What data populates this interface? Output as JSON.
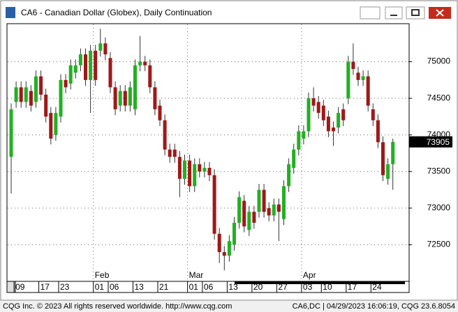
{
  "chart_data": {
    "type": "candlestick",
    "title": "CA6 - Canadian Dollar (Globex), Daily Continuation",
    "categories": [
      null,
      "09",
      null,
      null,
      null,
      null,
      "17",
      null,
      null,
      null,
      "23",
      null,
      null,
      null,
      null,
      null,
      null,
      "01",
      null,
      null,
      "06",
      null,
      null,
      null,
      null,
      "13",
      null,
      null,
      null,
      null,
      "21",
      null,
      null,
      null,
      null,
      null,
      "01",
      null,
      null,
      "06",
      null,
      null,
      null,
      null,
      "13",
      null,
      null,
      null,
      null,
      "20",
      null,
      null,
      null,
      null,
      "27",
      null,
      null,
      null,
      null,
      "03",
      null,
      null,
      null,
      "10",
      null,
      null,
      null,
      null,
      "17",
      null,
      null,
      null,
      null,
      "24",
      null,
      null,
      null,
      null
    ],
    "months": [
      null,
      null,
      null,
      null,
      null,
      null,
      null,
      null,
      null,
      null,
      null,
      null,
      null,
      null,
      null,
      null,
      null,
      "Feb",
      null,
      null,
      null,
      null,
      null,
      null,
      null,
      null,
      null,
      null,
      null,
      null,
      null,
      null,
      null,
      null,
      null,
      null,
      "Mar",
      null,
      null,
      null,
      null,
      null,
      null,
      null,
      null,
      null,
      null,
      null,
      null,
      null,
      null,
      null,
      null,
      null,
      null,
      null,
      null,
      null,
      null,
      "Apr",
      null,
      null,
      null,
      null,
      null,
      null,
      null,
      null,
      null,
      null,
      null,
      null,
      null,
      null,
      null,
      null,
      null,
      null
    ],
    "open": [
      73700,
      74450,
      74650,
      74450,
      74600,
      74450,
      74800,
      74550,
      74300,
      74000,
      74250,
      74750,
      74700,
      74850,
      74950,
      75100,
      74750,
      75150,
      75150,
      75250,
      75050,
      74650,
      74400,
      74600,
      74400,
      74350,
      74950,
      75000,
      74950,
      74650,
      74400,
      74200,
      73800,
      73800,
      73700,
      73400,
      73650,
      73300,
      73600,
      73500,
      73550,
      73450,
      72650,
      72400,
      72350,
      72500,
      72800,
      73100,
      72700,
      72950,
      72950,
      73250,
      73000,
      72900,
      73050,
      72850,
      73300,
      73550,
      73800,
      73950,
      74050,
      74500,
      74450,
      74400,
      74250,
      74100,
      74100,
      74350,
      74500,
      75000,
      74850,
      74750,
      74800,
      74350,
      74200,
      73900,
      73400,
      73600
    ],
    "high": [
      74430,
      74730,
      74730,
      74730,
      74680,
      74880,
      74880,
      74630,
      74380,
      74380,
      74830,
      74830,
      75030,
      75030,
      75180,
      75180,
      75230,
      75230,
      75450,
      75330,
      75130,
      74730,
      74680,
      74680,
      74730,
      75030,
      75350,
      75080,
      75030,
      74730,
      74480,
      74280,
      73880,
      73880,
      73780,
      73730,
      73730,
      73680,
      73680,
      73630,
      73630,
      73530,
      72730,
      72480,
      72630,
      72880,
      73230,
      73180,
      73030,
      73030,
      73330,
      73330,
      73080,
      73130,
      73130,
      73380,
      73680,
      73880,
      74130,
      74130,
      74580,
      74650,
      74530,
      74480,
      74330,
      74180,
      74380,
      74430,
      75080,
      75250,
      74930,
      74880,
      74880,
      74430,
      74280,
      73980,
      73680,
      73950
    ],
    "low": [
      73200,
      74370,
      74370,
      74370,
      74320,
      74370,
      74470,
      74170,
      73870,
      73920,
      74170,
      74570,
      74620,
      74770,
      74870,
      74670,
      74300,
      74670,
      75070,
      75020,
      74570,
      74270,
      74320,
      74320,
      74320,
      74270,
      74870,
      74870,
      74570,
      74270,
      74120,
      73720,
      73620,
      73620,
      73150,
      73320,
      73220,
      73220,
      73420,
      73420,
      73370,
      72570,
      72250,
      72150,
      72270,
      72420,
      72720,
      72670,
      72620,
      72720,
      72870,
      72870,
      72820,
      72820,
      72550,
      72770,
      73220,
      73470,
      73720,
      73870,
      73970,
      74320,
      74220,
      74120,
      73970,
      73850,
      74020,
      74120,
      74420,
      74820,
      74670,
      74670,
      74320,
      74120,
      73820,
      73370,
      73320,
      73250
    ],
    "close": [
      74350,
      74650,
      74450,
      74650,
      74400,
      74800,
      74550,
      74250,
      73950,
      74300,
      74750,
      74650,
      74950,
      74950,
      75100,
      74750,
      75150,
      74750,
      75250,
      75100,
      74650,
      74350,
      74600,
      74400,
      74650,
      74950,
      75000,
      74950,
      74650,
      74350,
      74200,
      73800,
      73700,
      73700,
      73400,
      73650,
      73300,
      73600,
      73500,
      73550,
      73450,
      72650,
      72400,
      72350,
      72550,
      72800,
      73150,
      72750,
      72950,
      72800,
      73250,
      72950,
      72900,
      73050,
      72950,
      73300,
      73600,
      73800,
      74050,
      74050,
      74500,
      74400,
      74300,
      74200,
      74050,
      74050,
      74300,
      74200,
      75000,
      74900,
      74750,
      74800,
      74400,
      74200,
      73900,
      73450,
      73600,
      73905
    ],
    "up_color": "#22b022",
    "down_color": "#a01818",
    "ylim": [
      72000,
      75500
    ],
    "yticks": [
      72500,
      73000,
      73500,
      74000,
      74500,
      75000
    ],
    "grid": true
  },
  "footer": {
    "left": "CQG Inc. © 2023 All rights reserved worldwide. http://www.cqg.com",
    "right": "CA6,DC | 04/29/2023 16:06:19, CQG 23.6.8054"
  }
}
